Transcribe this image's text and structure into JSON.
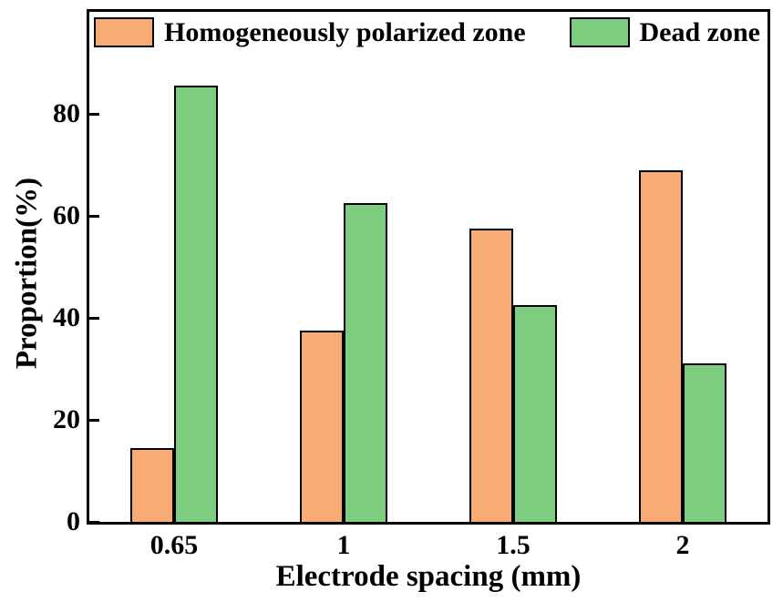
{
  "chart_data": {
    "type": "bar",
    "title": "",
    "categories": [
      "0.65",
      "1",
      "1.5",
      "2"
    ],
    "series": [
      {
        "name": "Homogeneously polarized zone",
        "color": "#F8AC74",
        "values": [
          14.5,
          37.5,
          57.5,
          69
        ]
      },
      {
        "name": "Dead zone",
        "color": "#7DCE81",
        "values": [
          85.5,
          62.5,
          42.5,
          31
        ]
      }
    ],
    "xlabel": "Electrode spacing (mm)",
    "ylabel": "Proportion(%)",
    "ylim": [
      0,
      100
    ],
    "yticks": [
      0,
      20,
      40,
      60,
      80
    ],
    "grid": false,
    "legend_position": "top-inside",
    "bar_edge_color": "#000000",
    "axis_color": "#000000",
    "background_color": "#ffffff"
  }
}
